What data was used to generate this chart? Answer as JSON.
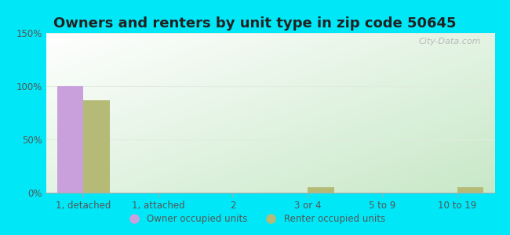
{
  "title": "Owners and renters by unit type in zip code 50645",
  "categories": [
    "1, detached",
    "1, attached",
    "2",
    "3 or 4",
    "5 to 9",
    "10 to 19"
  ],
  "owner_values": [
    100,
    0,
    0,
    0,
    0,
    0
  ],
  "renter_values": [
    87,
    0,
    0,
    5,
    0,
    5
  ],
  "owner_color": "#c9a0dc",
  "renter_color": "#b5bb77",
  "outer_bg": "#00e8f8",
  "ylim": [
    0,
    150
  ],
  "yticks": [
    0,
    50,
    100,
    150
  ],
  "ytick_labels": [
    "0%",
    "50%",
    "100%",
    "150%"
  ],
  "title_fontsize": 13,
  "bar_width": 0.35,
  "legend_owner": "Owner occupied units",
  "legend_renter": "Renter occupied units",
  "watermark": "City-Data.com",
  "grad_top": "#ffffff",
  "grad_bottom_right": "#c8e8c8",
  "title_color": "#222222",
  "tick_color": "#555555",
  "grid_color": "#e0ece0"
}
